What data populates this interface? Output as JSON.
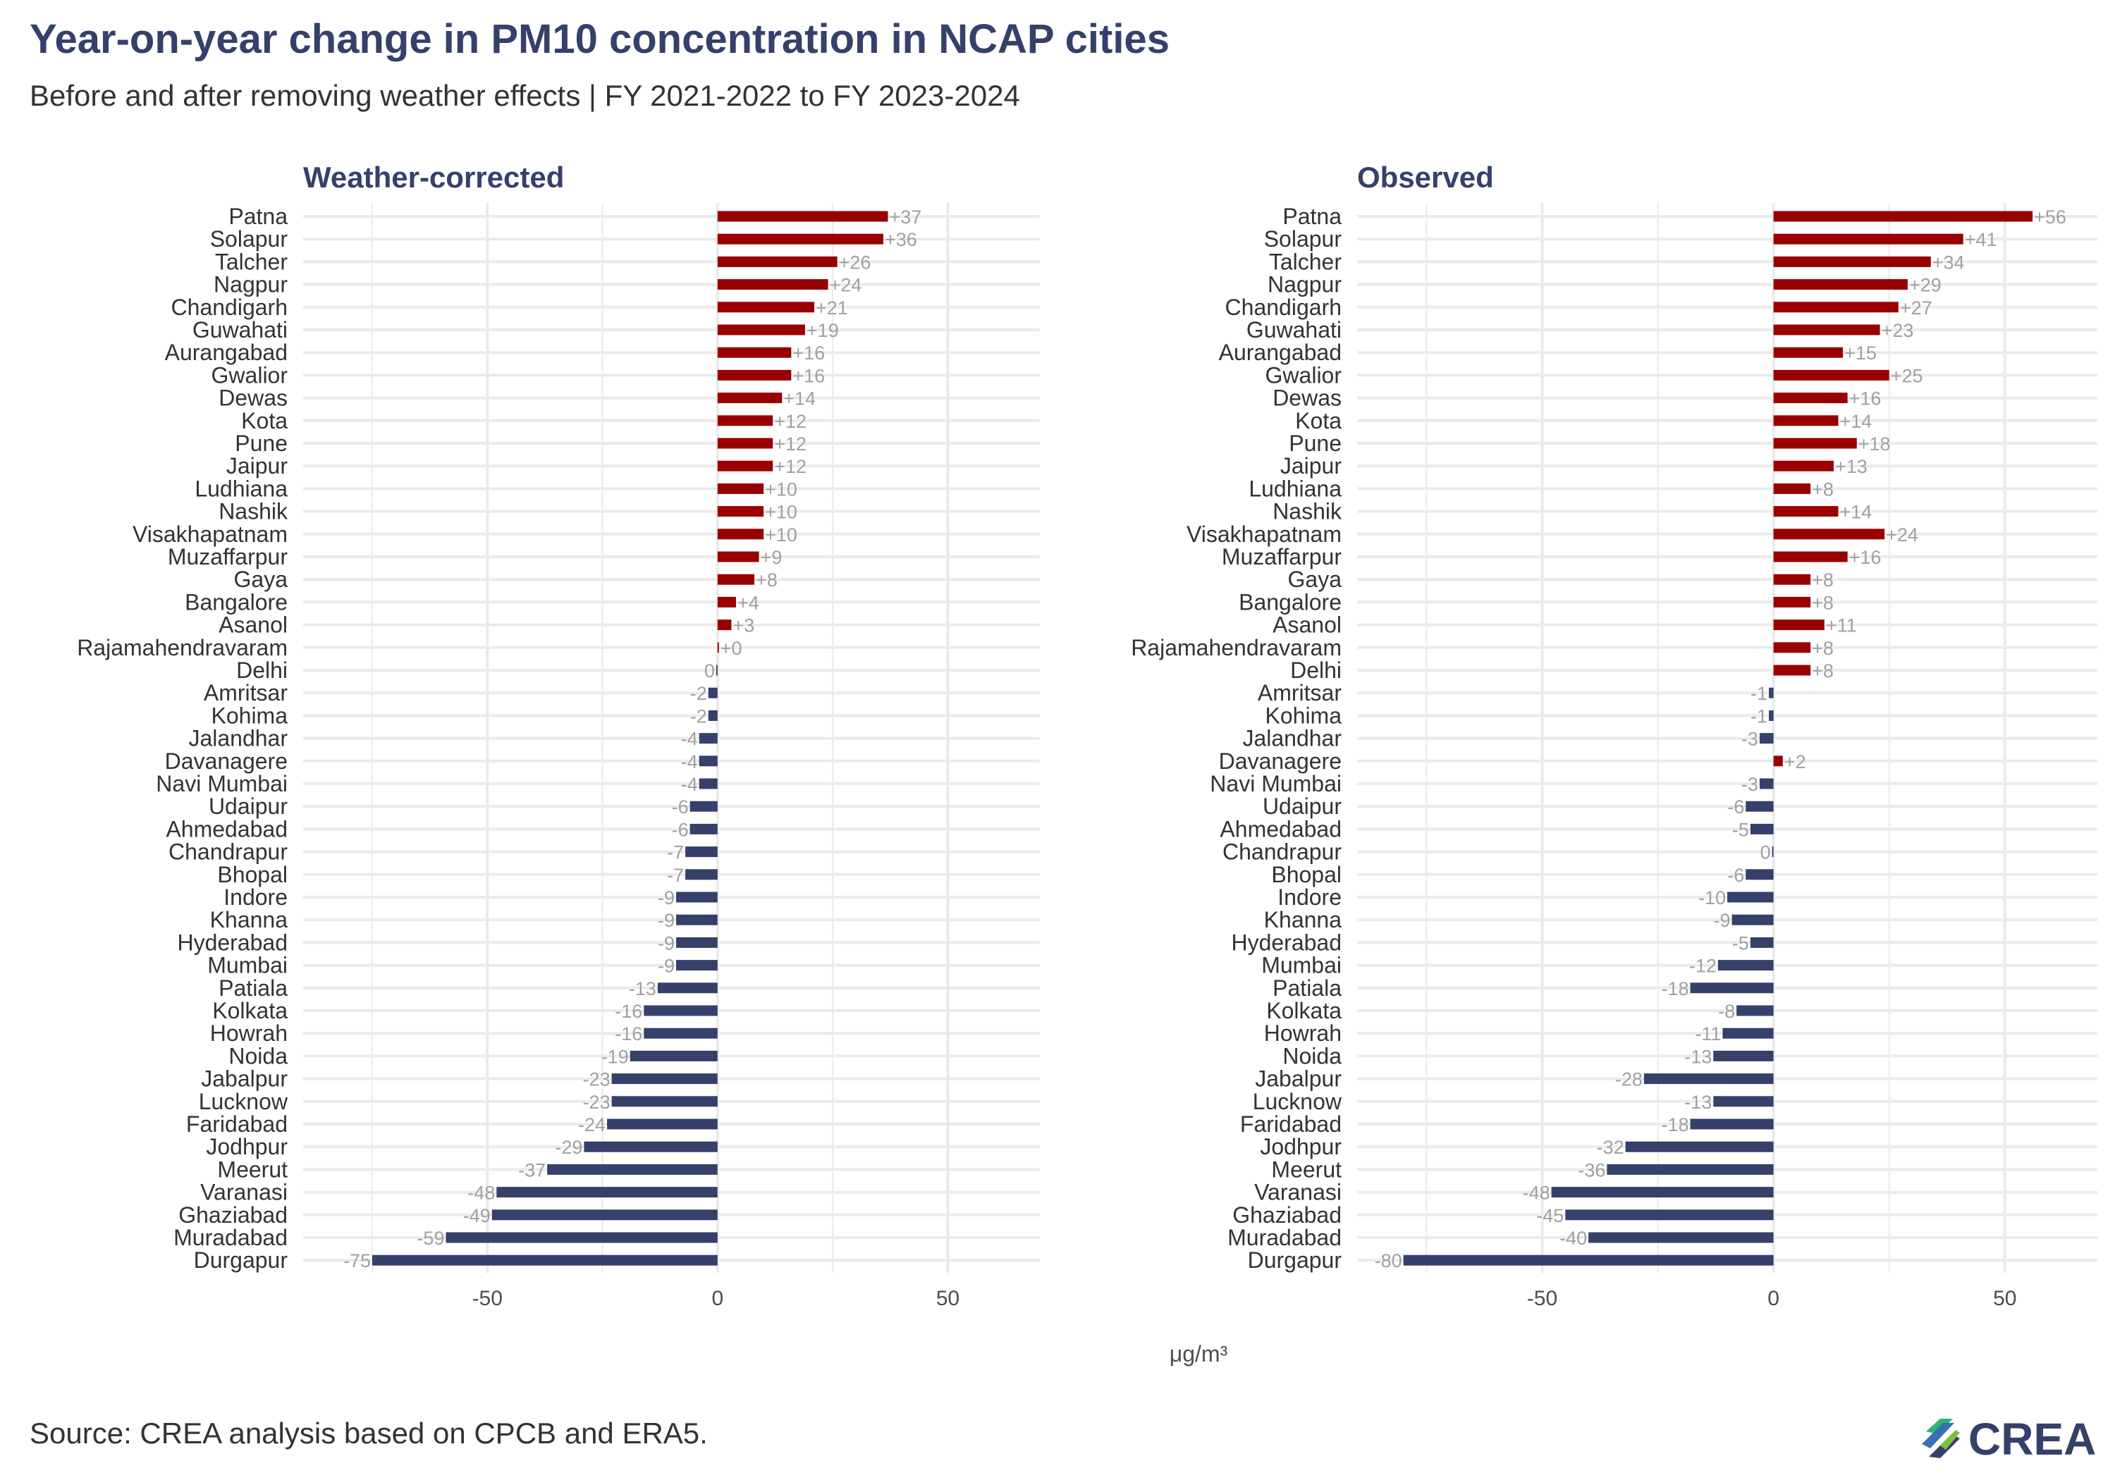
{
  "header": {
    "title": "Year-on-year change in PM10 concentration in NCAP cities",
    "subtitle": "Before and after removing weather effects | FY 2021-2022 to FY 2023-2024"
  },
  "footer": {
    "source": "Source: CREA analysis based on CPCB and ERA5.",
    "logo_text": "CREA"
  },
  "colors": {
    "positive": "#990000",
    "negative": "#35406b",
    "title": "#35406b",
    "label": "#a0a0a0",
    "grid": "#ebebeb"
  },
  "chart_data": {
    "type": "bar",
    "orientation": "horizontal",
    "xlabel": "μg/m³",
    "xlim": [
      -90,
      70
    ],
    "xticks": [
      -50,
      0,
      50
    ],
    "grid": true,
    "categories": [
      "Patna",
      "Solapur",
      "Talcher",
      "Nagpur",
      "Chandigarh",
      "Guwahati",
      "Aurangabad",
      "Gwalior",
      "Dewas",
      "Kota",
      "Pune",
      "Jaipur",
      "Ludhiana",
      "Nashik",
      "Visakhapatnam",
      "Muzaffarpur",
      "Gaya",
      "Bangalore",
      "Asanol",
      "Rajamahendravaram",
      "Delhi",
      "Amritsar",
      "Kohima",
      "Jalandhar",
      "Davanagere",
      "Navi Mumbai",
      "Udaipur",
      "Ahmedabad",
      "Chandrapur",
      "Bhopal",
      "Indore",
      "Khanna",
      "Hyderabad",
      "Mumbai",
      "Patiala",
      "Kolkata",
      "Howrah",
      "Noida",
      "Jabalpur",
      "Lucknow",
      "Faridabad",
      "Jodhpur",
      "Meerut",
      "Varanasi",
      "Ghaziabad",
      "Muradabad",
      "Durgapur"
    ],
    "panels": [
      {
        "name": "Weather-corrected",
        "values": [
          37,
          36,
          26,
          24,
          21,
          19,
          16,
          16,
          14,
          12,
          12,
          12,
          10,
          10,
          10,
          9,
          8,
          4,
          3,
          0.3,
          -0.3,
          -2,
          -2,
          -4,
          -4,
          -4,
          -6,
          -6,
          -7,
          -7,
          -9,
          -9,
          -9,
          -9,
          -13,
          -16,
          -16,
          -19,
          -23,
          -23,
          -24,
          -29,
          -37,
          -48,
          -49,
          -59,
          -75
        ],
        "labels": [
          "+37",
          "+36",
          "+26",
          "+24",
          "+21",
          "+19",
          "+16",
          "+16",
          "+14",
          "+12",
          "+12",
          "+12",
          "+10",
          "+10",
          "+10",
          "+9",
          "+8",
          "+4",
          "+3",
          "+0",
          "0",
          "-2",
          "-2",
          "-4",
          "-4",
          "-4",
          "-6",
          "-6",
          "-7",
          "-7",
          "-9",
          "-9",
          "-9",
          "-9",
          "-13",
          "-16",
          "-16",
          "-19",
          "-23",
          "-23",
          "-24",
          "-29",
          "-37",
          "-48",
          "-49",
          "-59",
          "-75"
        ]
      },
      {
        "name": "Observed",
        "values": [
          56,
          41,
          34,
          29,
          27,
          23,
          15,
          25,
          16,
          14,
          18,
          13,
          8,
          14,
          24,
          16,
          8,
          8,
          11,
          8,
          8,
          -1,
          -1,
          -3,
          2,
          -3,
          -6,
          -5,
          -0.3,
          -6,
          -10,
          -9,
          -5,
          -12,
          -18,
          -8,
          -11,
          -13,
          -28,
          -13,
          -18,
          -32,
          -36,
          -48,
          -45,
          -40,
          -80
        ],
        "labels": [
          "+56",
          "+41",
          "+34",
          "+29",
          "+27",
          "+23",
          "+15",
          "+25",
          "+16",
          "+14",
          "+18",
          "+13",
          "+8",
          "+14",
          "+24",
          "+16",
          "+8",
          "+8",
          "+11",
          "+8",
          "+8",
          "-1",
          "-1",
          "-3",
          "+2",
          "-3",
          "-6",
          "-5",
          "0",
          "-6",
          "-10",
          "-9",
          "-5",
          "-12",
          "-18",
          "-8",
          "-11",
          "-13",
          "-28",
          "-13",
          "-18",
          "-32",
          "-36",
          "-48",
          "-45",
          "-40",
          "-80"
        ]
      }
    ]
  }
}
